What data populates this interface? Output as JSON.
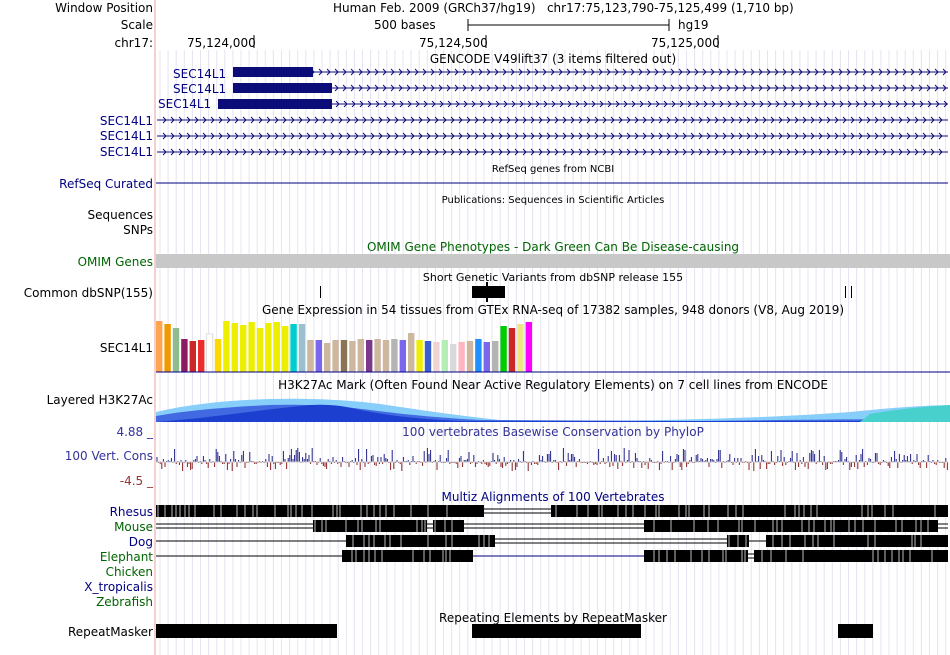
{
  "header": {
    "window_position_label": "Window Position",
    "window_position_value": "Human Feb. 2009 (GRCh37/hg19)   chr17:75,123,790-75,125,499 (1,710 bp)",
    "scale_label": "Scale",
    "scale_value": "500 bases",
    "scale_assembly": "hg19",
    "chrom_label": "chr17:",
    "ruler_ticks": [
      "75,124,000",
      "75,124,500",
      "75,125,000"
    ]
  },
  "tracks": {
    "gencode": {
      "title": "GENCODE V49lift37 (3 items filtered out)",
      "items": [
        "SEC14L1",
        "SEC14L1",
        "SEC14L1",
        "SEC14L1",
        "SEC14L1",
        "SEC14L1"
      ],
      "color": "#0c0c78"
    },
    "refseq": {
      "label": "RefSeq Curated",
      "title": "RefSeq genes from NCBI"
    },
    "publications": {
      "title": "Publications: Sequences in Scientific Articles",
      "label": "Sequences"
    },
    "snps_label": "SNPs",
    "omim": {
      "title": "OMIM Gene Phenotypes - Dark Green Can Be Disease-causing",
      "label": "OMIM Genes",
      "color": "#c8c8c8"
    },
    "dbsnp": {
      "title": "Short Genetic Variants from dbSNP release 155",
      "label": "Common dbSNP(155)"
    },
    "gtex": {
      "title": "Gene Expression in 54 tissues from GTEx RNA-seq of 17382 samples, 948 donors (V8, Aug 2019)",
      "label": "SEC14L1",
      "bar_colors": [
        "#ffa54f",
        "#ee9a00",
        "#8fbc8f",
        "#8b1c62",
        "#cd2626",
        "#ee2c2c",
        "#ffffff",
        "#ffd700",
        "#eeee00",
        "#eeee00",
        "#eeee00",
        "#eeee00",
        "#eeee00",
        "#eeee00",
        "#eeee00",
        "#eeee00",
        "#00cdcd",
        "#9ac0cd",
        "#cdb79e",
        "#7a67ee",
        "#cdb79e",
        "#cdb79e",
        "#8b7355",
        "#cdb79e",
        "#cdb79e",
        "#7a378b",
        "#cdb79e",
        "#cdb79e",
        "#b4b4b4",
        "#7a67ee",
        "#cdb79e",
        "#eeee00",
        "#3a5fcd",
        "#eed5d2",
        "#b4eeb4",
        "#d9d9d9",
        "#ffb6c1",
        "#cdb79e",
        "#1e90ff",
        "#7a67ee",
        "#b4b4b4",
        "#00cd00",
        "#cd2626",
        "#eee685",
        "#ff00ff"
      ],
      "bar_levels": [
        0.94,
        0.88,
        0.82,
        0.62,
        0.57,
        0.59,
        0.71,
        0.62,
        0.94,
        0.91,
        0.87,
        0.93,
        0.82,
        0.9,
        0.93,
        0.86,
        0.89,
        0.89,
        0.59,
        0.6,
        0.53,
        0.6,
        0.59,
        0.57,
        0.62,
        0.59,
        0.62,
        0.6,
        0.62,
        0.6,
        0.72,
        0.6,
        0.57,
        0.56,
        0.59,
        0.52,
        0.55,
        0.57,
        0.62,
        0.56,
        0.57,
        0.85,
        0.81,
        0.88,
        0.92
      ]
    },
    "h3k27ac": {
      "title": "H3K27Ac Mark (Often Found Near Active Regulatory Elements) on 7 cell lines from ENCODE",
      "label": "Layered H3K27Ac"
    },
    "phylop": {
      "title": "100 vertebrates Basewise Conservation by PhyloP",
      "label": "100 Vert. Cons",
      "max": "4.88 _",
      "min": "-4.5 _"
    },
    "multiz": {
      "title": "Multiz Alignments of 100 Vertebrates",
      "species": [
        {
          "name": "Rhesus",
          "color": "#000080"
        },
        {
          "name": "Mouse",
          "color": "#006400"
        },
        {
          "name": "Dog",
          "color": "#000080"
        },
        {
          "name": "Elephant",
          "color": "#006400"
        },
        {
          "name": "Chicken",
          "color": "#006400"
        },
        {
          "name": "X_tropicalis",
          "color": "#000080"
        },
        {
          "name": "Zebrafish",
          "color": "#006400"
        }
      ]
    },
    "repeatmasker": {
      "title": "Repeating Elements by RepeatMasker",
      "label": "RepeatMasker"
    }
  },
  "colors": {
    "left_divider": "#e8a0a0",
    "grid": "#d8d8f0",
    "navy": "#000080",
    "green": "#006400"
  }
}
